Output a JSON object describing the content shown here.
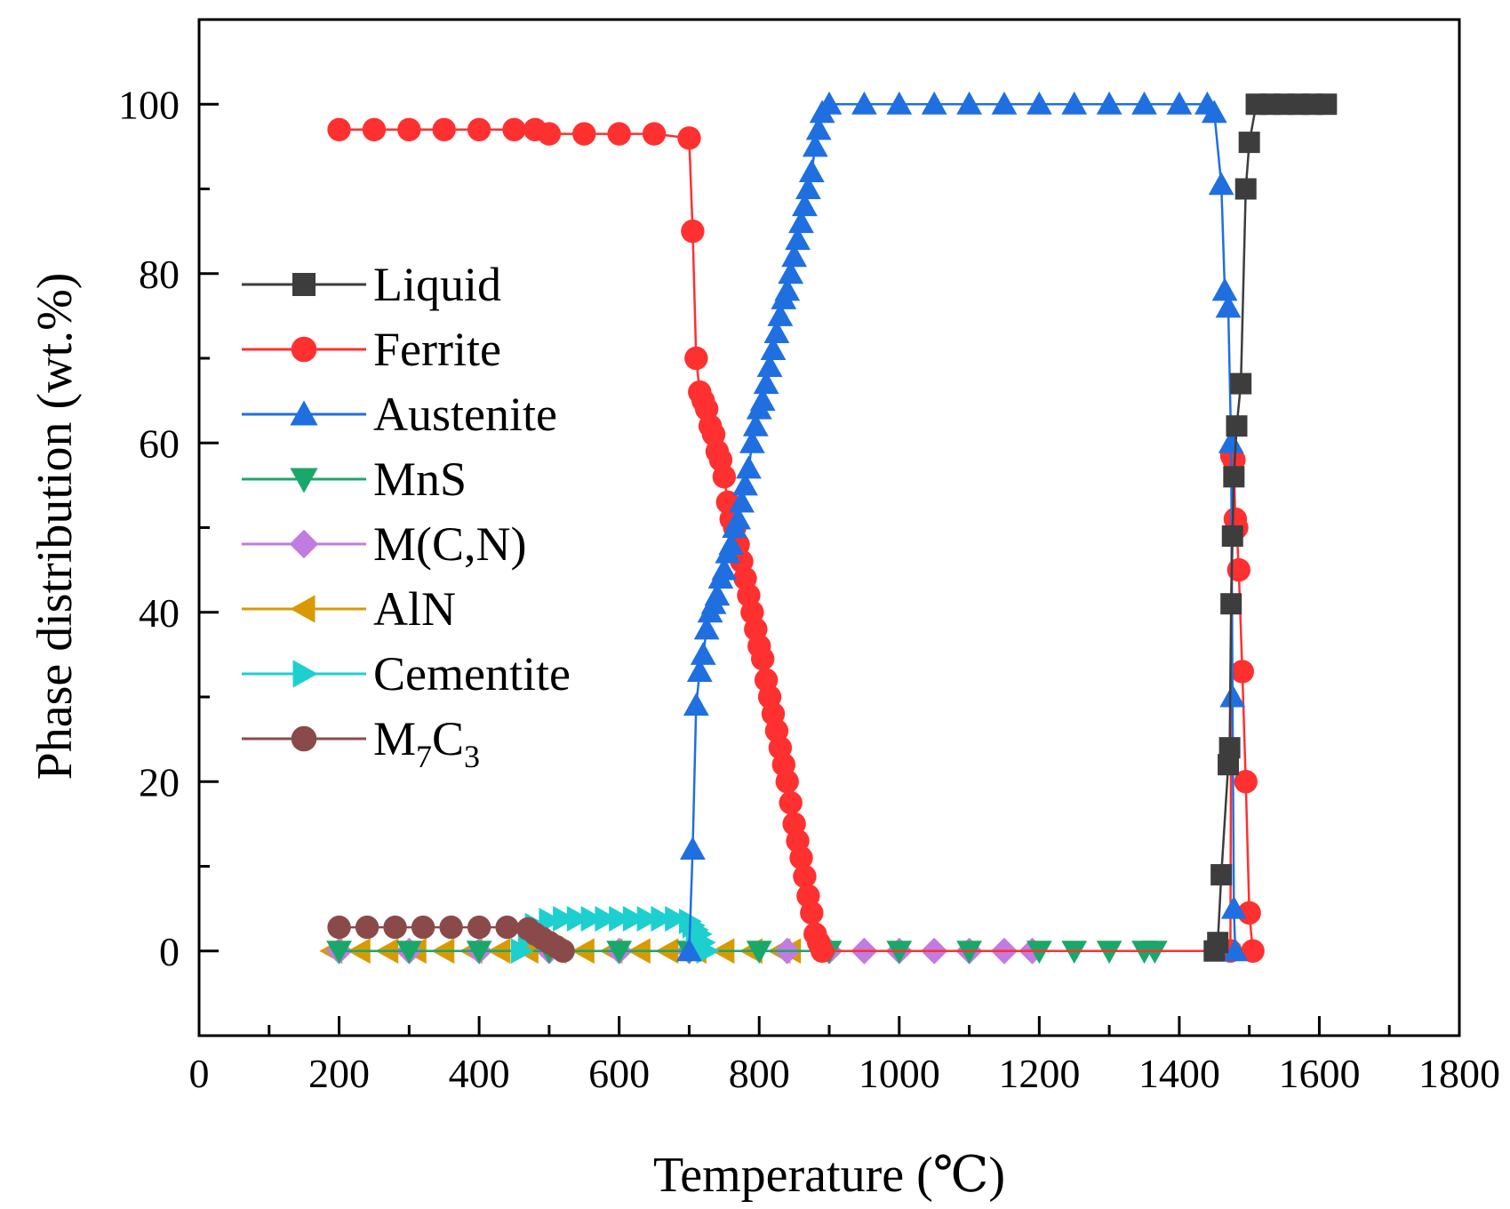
{
  "chart_data": {
    "type": "line",
    "title": "",
    "xlabel": "Temperature (℃)",
    "ylabel": "Phase distribution (wt.%)",
    "xlim": [
      0,
      1800
    ],
    "ylim": [
      -10,
      110
    ],
    "xticks": [
      "0",
      "200",
      "400",
      "600",
      "800",
      "1000",
      "1200",
      "1400",
      "1600",
      "1800"
    ],
    "yticks": [
      "0",
      "20",
      "40",
      "60",
      "80",
      "100"
    ],
    "legend_position": "center-left",
    "series": [
      {
        "name": "Liquid",
        "color": "#3d3d3d",
        "marker": "square",
        "x": [
          1450,
          1455,
          1460,
          1470,
          1472,
          1474,
          1476,
          1478,
          1482,
          1488,
          1495,
          1500,
          1510,
          1530,
          1550,
          1570,
          1590,
          1610
        ],
        "y": [
          0,
          1,
          9,
          22,
          24,
          41,
          49,
          56,
          62,
          67,
          90,
          95.5,
          100,
          100,
          100,
          100,
          100,
          100
        ]
      },
      {
        "name": "Ferrite",
        "color": "#ff3030",
        "marker": "circle",
        "x": [
          200,
          250,
          300,
          350,
          400,
          450,
          480,
          500,
          550,
          600,
          650,
          700,
          705,
          710,
          715,
          720,
          725,
          730,
          735,
          740,
          745,
          750,
          755,
          760,
          765,
          770,
          775,
          780,
          785,
          790,
          795,
          800,
          805,
          810,
          815,
          820,
          825,
          830,
          835,
          840,
          845,
          850,
          855,
          860,
          865,
          870,
          875,
          880,
          885,
          890,
          1473,
          1475,
          1478,
          1480,
          1482,
          1485,
          1490,
          1495,
          1500,
          1505
        ],
        "y": [
          97,
          97,
          97,
          97,
          97,
          97,
          97,
          96.5,
          96.5,
          96.5,
          96.5,
          96,
          85,
          70,
          66,
          65,
          64,
          62,
          61,
          59,
          58,
          56,
          53,
          51,
          50,
          48,
          46,
          44,
          42,
          40,
          38,
          36,
          34.5,
          32,
          30,
          28,
          26,
          24,
          22,
          20,
          17.5,
          15,
          13,
          11,
          8.8,
          6.5,
          4.5,
          2,
          1,
          0,
          0,
          58.5,
          58,
          51,
          50,
          45,
          33,
          20,
          4.5,
          0
        ]
      },
      {
        "name": "Austenite",
        "color": "#1f6fe0",
        "marker": "triangle-up",
        "x": [
          700,
          705,
          710,
          715,
          720,
          725,
          730,
          735,
          740,
          745,
          750,
          755,
          760,
          765,
          770,
          775,
          780,
          785,
          790,
          795,
          800,
          805,
          810,
          815,
          820,
          825,
          830,
          835,
          840,
          845,
          850,
          855,
          860,
          865,
          870,
          875,
          880,
          885,
          890,
          900,
          950,
          1000,
          1050,
          1100,
          1150,
          1200,
          1250,
          1300,
          1350,
          1400,
          1440,
          1450,
          1460,
          1465,
          1470,
          1474,
          1476,
          1478,
          1480
        ],
        "y": [
          0,
          12,
          29,
          33,
          35,
          38,
          40,
          41,
          42,
          44,
          45,
          47,
          48,
          50,
          51,
          53,
          55,
          57,
          60,
          62,
          64,
          65,
          67,
          69,
          71,
          73,
          75,
          77,
          78,
          80,
          82,
          84,
          86,
          88,
          90,
          92,
          95,
          97,
          99,
          100,
          100,
          100,
          100,
          100,
          100,
          100,
          100,
          100,
          100,
          100,
          100,
          99,
          90.5,
          78,
          76,
          60,
          30,
          5,
          0
        ]
      },
      {
        "name": "MnS",
        "color": "#1aa86a",
        "marker": "triangle-down",
        "x": [
          200,
          300,
          400,
          500,
          600,
          700,
          800,
          900,
          1000,
          1100,
          1200,
          1250,
          1300,
          1350,
          1365
        ],
        "y": [
          0,
          0,
          0,
          0,
          0,
          0,
          0,
          0,
          0,
          0,
          0,
          0,
          0,
          0,
          0
        ]
      },
      {
        "name": "M(C,N)",
        "color": "#c27be0",
        "marker": "diamond",
        "x": [
          200,
          300,
          400,
          500,
          600,
          700,
          840,
          900,
          950,
          1000,
          1050,
          1100,
          1150,
          1190
        ],
        "y": [
          0,
          0,
          0,
          0,
          0,
          0,
          0,
          0,
          0,
          0,
          0,
          0,
          0,
          0
        ]
      },
      {
        "name": "AlN",
        "color": "#d99a00",
        "marker": "triangle-left",
        "x": [
          190,
          230,
          270,
          310,
          350,
          390,
          430,
          470,
          510,
          550,
          590,
          630,
          670,
          710,
          750,
          790,
          830,
          845
        ],
        "y": [
          0,
          0,
          0,
          0,
          0,
          0,
          0,
          0,
          0,
          0,
          0,
          0,
          0,
          0,
          0,
          0,
          0,
          0
        ]
      },
      {
        "name": "Cementite",
        "color": "#1ecfcf",
        "marker": "triangle-right",
        "x": [
          460,
          470,
          480,
          500,
          520,
          540,
          560,
          580,
          600,
          620,
          640,
          660,
          680,
          700,
          705,
          710,
          715,
          720,
          725
        ],
        "y": [
          0,
          1.5,
          3,
          3.6,
          3.8,
          3.8,
          3.8,
          3.8,
          3.8,
          3.8,
          3.8,
          3.8,
          3.8,
          3.5,
          3,
          2.5,
          2,
          1,
          0
        ]
      },
      {
        "name": "M7C3",
        "name_main": "M",
        "name_sub1": "7",
        "name_mid": "C",
        "name_sub2": "3",
        "color": "#8b4a4a",
        "marker": "circle",
        "x": [
          200,
          240,
          280,
          320,
          360,
          400,
          440,
          470,
          480,
          490,
          500,
          510,
          520
        ],
        "y": [
          2.8,
          2.8,
          2.8,
          2.8,
          2.8,
          2.8,
          2.8,
          2.6,
          2,
          1.5,
          1,
          0.5,
          0
        ]
      }
    ]
  }
}
